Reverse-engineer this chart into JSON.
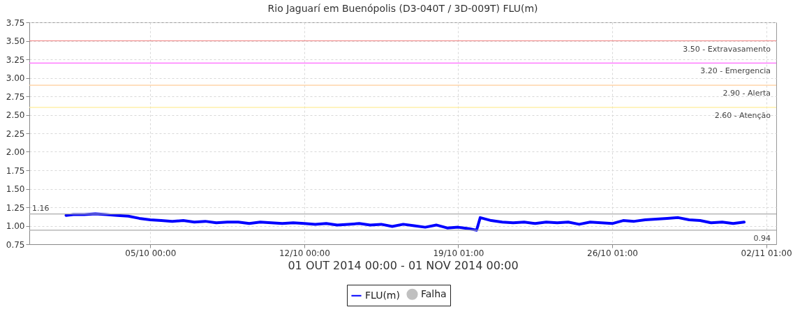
{
  "chart_data": {
    "type": "line",
    "title": "Rio Jaguarí em Buenópolis (D3-040T / 3D-009T) FLU(m)",
    "xlabel": "01 OUT 2014 00:00 - 01 NOV 2014 00:00",
    "xlim": [
      "2014-09-29T12:00",
      "2014-11-02T11:00"
    ],
    "xticks": [
      {
        "value": "2014-10-05T00:00",
        "label": "05/10 00:00"
      },
      {
        "value": "2014-10-12T00:00",
        "label": "12/10 00:00"
      },
      {
        "value": "2014-10-19T00:00",
        "label": "19/10 01:00"
      },
      {
        "value": "2014-10-26T00:00",
        "label": "26/10 01:00"
      },
      {
        "value": "2014-11-02T00:00",
        "label": "02/11 01:00"
      }
    ],
    "ylim": [
      0.75,
      3.75
    ],
    "yticks": [
      0.75,
      {
        "value": 1,
        "label": "1.00"
      },
      1.25,
      {
        "value": 1.5,
        "label": "1.50"
      },
      1.75,
      {
        "value": 2,
        "label": "2.00"
      },
      2.25,
      {
        "value": 2.5,
        "label": "2.50"
      },
      2.75,
      {
        "value": 3,
        "label": "3.00"
      },
      3.25,
      {
        "value": 3.5,
        "label": "3.50"
      },
      3.75
    ],
    "grid": true,
    "legend": "bottom",
    "marker": "none",
    "line_style": "solid",
    "series": [
      {
        "name": "FLU(m)",
        "type": "line",
        "color": "#0000ff",
        "x": [
          "2014-10-01T04:00",
          "2014-10-01T12:00",
          "2014-10-02T00:00",
          "2014-10-02T12:00",
          "2014-10-03T00:00",
          "2014-10-03T12:00",
          "2014-10-04T00:00",
          "2014-10-04T12:00",
          "2014-10-05T00:00",
          "2014-10-05T12:00",
          "2014-10-06T00:00",
          "2014-10-06T12:00",
          "2014-10-07T00:00",
          "2014-10-07T12:00",
          "2014-10-08T00:00",
          "2014-10-08T12:00",
          "2014-10-09T00:00",
          "2014-10-09T12:00",
          "2014-10-10T00:00",
          "2014-10-10T12:00",
          "2014-10-11T00:00",
          "2014-10-11T12:00",
          "2014-10-12T00:00",
          "2014-10-12T12:00",
          "2014-10-13T00:00",
          "2014-10-13T12:00",
          "2014-10-14T00:00",
          "2014-10-14T12:00",
          "2014-10-15T00:00",
          "2014-10-15T12:00",
          "2014-10-16T00:00",
          "2014-10-16T12:00",
          "2014-10-17T00:00",
          "2014-10-17T12:00",
          "2014-10-18T00:00",
          "2014-10-18T12:00",
          "2014-10-19T00:00",
          "2014-10-19T12:00",
          "2014-10-19T20:00",
          "2014-10-20T00:00",
          "2014-10-20T12:00",
          "2014-10-21T00:00",
          "2014-10-21T12:00",
          "2014-10-22T00:00",
          "2014-10-22T12:00",
          "2014-10-23T00:00",
          "2014-10-23T12:00",
          "2014-10-24T00:00",
          "2014-10-24T12:00",
          "2014-10-25T00:00",
          "2014-10-25T12:00",
          "2014-10-26T00:00",
          "2014-10-26T12:00",
          "2014-10-27T00:00",
          "2014-10-27T12:00",
          "2014-10-28T00:00",
          "2014-10-28T12:00",
          "2014-10-29T00:00",
          "2014-10-29T12:00",
          "2014-10-30T00:00",
          "2014-10-30T12:00",
          "2014-10-31T00:00",
          "2014-10-31T12:00",
          "2014-11-01T00:00"
        ],
        "values": [
          1.14,
          1.15,
          1.15,
          1.16,
          1.15,
          1.14,
          1.13,
          1.1,
          1.08,
          1.07,
          1.06,
          1.07,
          1.05,
          1.06,
          1.04,
          1.05,
          1.05,
          1.03,
          1.05,
          1.04,
          1.03,
          1.04,
          1.03,
          1.02,
          1.03,
          1.01,
          1.02,
          1.03,
          1.01,
          1.02,
          0.99,
          1.02,
          1.0,
          0.98,
          1.01,
          0.97,
          0.98,
          0.96,
          0.94,
          1.11,
          1.07,
          1.05,
          1.04,
          1.05,
          1.03,
          1.05,
          1.04,
          1.05,
          1.02,
          1.05,
          1.04,
          1.03,
          1.07,
          1.06,
          1.08,
          1.09,
          1.1,
          1.11,
          1.08,
          1.07,
          1.04,
          1.05,
          1.03,
          1.05
        ]
      },
      {
        "name": "Falha",
        "type": "scatter",
        "color": "#c0c0c0"
      }
    ],
    "ref_lines": [
      {
        "axis": "y",
        "value": 3.5,
        "label": "3.50 - Extravasamento",
        "color": "#f08080"
      },
      {
        "axis": "y",
        "value": 3.2,
        "label": "3.20 - Emergencia",
        "color": "#ff66ff"
      },
      {
        "axis": "y",
        "value": 2.9,
        "label": "2.90 - Alerta",
        "color": "#ffcc99"
      },
      {
        "axis": "y",
        "value": 2.6,
        "label": "2.60 - Atenção",
        "color": "#ffee99"
      },
      {
        "axis": "y",
        "value": 1.16,
        "label": "1.16",
        "color": "#aaaaaa"
      },
      {
        "axis": "y",
        "value": 0.94,
        "label": "0.94",
        "color": "#aaaaaa"
      }
    ]
  }
}
